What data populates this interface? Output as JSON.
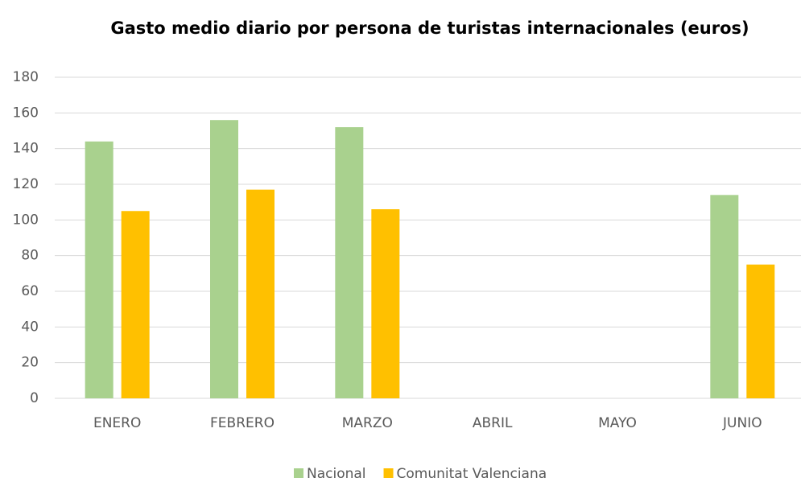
{
  "chart_data": {
    "type": "bar",
    "title": "Gasto medio diario por persona de turistas internacionales (euros)",
    "categories": [
      "ENERO",
      "FEBRERO",
      "MARZO",
      "ABRIL",
      "MAYO",
      "JUNIO"
    ],
    "series": [
      {
        "name": "Nacional",
        "color": "#a9d18e",
        "values": [
          144,
          156,
          152,
          null,
          null,
          114
        ]
      },
      {
        "name": "Comunitat Valenciana",
        "color": "#ffc000",
        "values": [
          105,
          117,
          106,
          null,
          null,
          75
        ]
      }
    ],
    "ylim": [
      0,
      180
    ],
    "yticks": [
      0,
      20,
      40,
      60,
      80,
      100,
      120,
      140,
      160,
      180
    ],
    "grid": true,
    "legend": "bottom"
  }
}
